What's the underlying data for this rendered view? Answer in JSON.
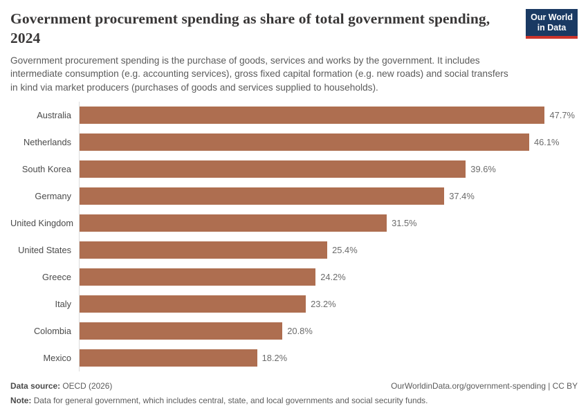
{
  "header": {
    "title": "Government procurement spending as share of total government spending, 2024",
    "subtitle": "Government procurement spending is the purchase of goods, services and works by the government. It includes intermediate consumption (e.g. accounting services), gross fixed capital formation (e.g. new roads) and social transfers in kind via market producers (purchases of goods and services supplied to households).",
    "logo": {
      "line1": "Our World",
      "line2": "in Data",
      "background_color": "#1a3a63",
      "accent_color": "#cc342b"
    }
  },
  "chart_data": {
    "type": "bar",
    "orientation": "horizontal",
    "title": "Government procurement spending as share of total government spending, 2024",
    "categories": [
      "Australia",
      "Netherlands",
      "South Korea",
      "Germany",
      "United Kingdom",
      "United States",
      "Greece",
      "Italy",
      "Colombia",
      "Mexico"
    ],
    "values": [
      47.7,
      46.1,
      39.6,
      37.4,
      31.5,
      25.4,
      24.2,
      23.2,
      20.8,
      18.2
    ],
    "value_labels": [
      "47.7%",
      "46.1%",
      "39.6%",
      "37.4%",
      "31.5%",
      "25.4%",
      "24.2%",
      "23.2%",
      "20.8%",
      "18.2%"
    ],
    "unit": "%",
    "bar_color": "#ae6e50",
    "axis_line_color": "#dcdcdc",
    "xlim": [
      0,
      47.7
    ],
    "grid": false,
    "legend": "none"
  },
  "footer": {
    "data_source_label": "Data source:",
    "data_source_value": " OECD (2026)",
    "credit": "OurWorldinData.org/government-spending | CC BY",
    "note_label": "Note:",
    "note_value": " Data for general government, which includes central, state, and local governments and social security funds."
  }
}
